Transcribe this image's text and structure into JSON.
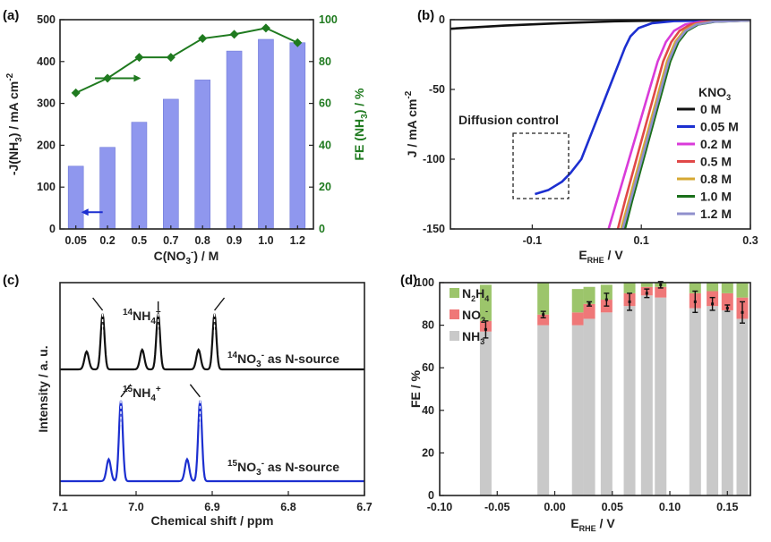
{
  "chart_data": [
    {
      "panel": "(a)",
      "type": "bar",
      "categories": [
        "0.05",
        "0.2",
        "0.5",
        "0.7",
        "0.8",
        "0.9",
        "1.0",
        "1.2"
      ],
      "series": [
        {
          "name": "-J(NH3)",
          "values": [
            150,
            195,
            255,
            310,
            356,
            425,
            453,
            445
          ],
          "color": "#8f97ee",
          "axis": "left"
        },
        {
          "name": "FE (NH3)",
          "values": [
            65,
            72,
            82,
            82,
            91,
            93,
            96,
            89
          ],
          "color": "#1f7a1f",
          "axis": "right"
        }
      ],
      "xlabel": "C(NO",
      "xlabel_sub": "3",
      "xlabel_sup": "-",
      "xlabel_tail": ") / M",
      "ylabel": "-J(NH",
      "ylabel_sub": "3",
      "ylabel_tail": ") / mA cm",
      "ylabel_sup": "-2",
      "y2label": "FE (NH",
      "y2label_sub": "3",
      "y2label_tail": ") / %",
      "ylim": [
        0,
        500
      ],
      "y2lim": [
        0,
        100
      ],
      "yticks": [
        "0",
        "100",
        "200",
        "300",
        "400",
        "500"
      ],
      "y2ticks": [
        "0",
        "20",
        "40",
        "60",
        "80",
        "100"
      ]
    },
    {
      "panel": "(b)",
      "type": "line",
      "xlabel": "E",
      "xlabel_sub": "RHE",
      "xlabel_tail": " / V",
      "ylabel": "J / mA cm",
      "ylabel_sup": "-2",
      "xlim": [
        -0.25,
        0.3
      ],
      "ylim": [
        -150,
        0
      ],
      "xticks": [
        "-0.1",
        "0.1",
        "0.3"
      ],
      "yticks": [
        "0",
        "-50",
        "-100",
        "-150"
      ],
      "legend_title": "KNO",
      "legend_title_sub": "3",
      "annotation": "Diffusion control",
      "series": [
        {
          "name": "0 M",
          "color": "#111111",
          "points": [
            [
              -0.25,
              -6.5
            ],
            [
              -0.15,
              -4.2
            ],
            [
              -0.05,
              -2.5
            ],
            [
              0.05,
              -1.2
            ],
            [
              0.15,
              -0.5
            ],
            [
              0.3,
              -0.1
            ]
          ]
        },
        {
          "name": "0.05 M",
          "color": "#1c2fd0",
          "points": [
            [
              -0.095,
              -125
            ],
            [
              -0.07,
              -122
            ],
            [
              -0.045,
              -116
            ],
            [
              -0.03,
              -110
            ],
            [
              -0.01,
              -100
            ],
            [
              0.0,
              -90
            ],
            [
              0.01,
              -80
            ],
            [
              0.02,
              -70
            ],
            [
              0.03,
              -60
            ],
            [
              0.04,
              -50
            ],
            [
              0.05,
              -40
            ],
            [
              0.06,
              -30
            ],
            [
              0.07,
              -20
            ],
            [
              0.08,
              -12
            ],
            [
              0.095,
              -6
            ],
            [
              0.12,
              -2.5
            ],
            [
              0.16,
              -1
            ],
            [
              0.3,
              -0.2
            ]
          ]
        },
        {
          "name": "0.2 M",
          "color": "#d93bd9",
          "points": [
            [
              0.04,
              -150
            ],
            [
              0.055,
              -130
            ],
            [
              0.07,
              -110
            ],
            [
              0.085,
              -90
            ],
            [
              0.1,
              -70
            ],
            [
              0.115,
              -50
            ],
            [
              0.13,
              -30
            ],
            [
              0.145,
              -16
            ],
            [
              0.16,
              -8
            ],
            [
              0.18,
              -3.5
            ],
            [
              0.21,
              -1.5
            ],
            [
              0.3,
              -0.5
            ]
          ]
        },
        {
          "name": "0.5 M",
          "color": "#e04848",
          "points": [
            [
              0.057,
              -150
            ],
            [
              0.07,
              -130
            ],
            [
              0.084,
              -110
            ],
            [
              0.098,
              -90
            ],
            [
              0.112,
              -70
            ],
            [
              0.126,
              -50
            ],
            [
              0.14,
              -30
            ],
            [
              0.155,
              -16
            ],
            [
              0.17,
              -8
            ],
            [
              0.19,
              -3.5
            ],
            [
              0.22,
              -1.5
            ],
            [
              0.3,
              -0.5
            ]
          ]
        },
        {
          "name": "0.8 M",
          "color": "#d6a833",
          "points": [
            [
              0.063,
              -150
            ],
            [
              0.077,
              -130
            ],
            [
              0.091,
              -110
            ],
            [
              0.105,
              -90
            ],
            [
              0.119,
              -70
            ],
            [
              0.133,
              -50
            ],
            [
              0.147,
              -30
            ],
            [
              0.162,
              -16
            ],
            [
              0.178,
              -8
            ],
            [
              0.198,
              -3.5
            ],
            [
              0.228,
              -1.5
            ],
            [
              0.3,
              -0.5
            ]
          ]
        },
        {
          "name": "1.0 M",
          "color": "#1a6f1a",
          "points": [
            [
              0.07,
              -150
            ],
            [
              0.083,
              -130
            ],
            [
              0.097,
              -110
            ],
            [
              0.111,
              -90
            ],
            [
              0.125,
              -70
            ],
            [
              0.139,
              -50
            ],
            [
              0.153,
              -30
            ],
            [
              0.168,
              -16
            ],
            [
              0.184,
              -8
            ],
            [
              0.204,
              -3.5
            ],
            [
              0.234,
              -1.5
            ],
            [
              0.3,
              -0.5
            ]
          ]
        },
        {
          "name": "1.2 M",
          "color": "#9090cc",
          "points": [
            [
              0.066,
              -150
            ],
            [
              0.08,
              -130
            ],
            [
              0.094,
              -110
            ],
            [
              0.108,
              -90
            ],
            [
              0.122,
              -70
            ],
            [
              0.136,
              -50
            ],
            [
              0.15,
              -30
            ],
            [
              0.165,
              -16
            ],
            [
              0.181,
              -8
            ],
            [
              0.201,
              -3.5
            ],
            [
              0.231,
              -1.5
            ],
            [
              0.3,
              -0.5
            ]
          ]
        }
      ]
    },
    {
      "panel": "(c)",
      "type": "line",
      "xlabel": "Chemical shift / ppm",
      "ylabel": "Intensity / a. u.",
      "xlim": [
        7.1,
        6.7
      ],
      "xticks": [
        "7.1",
        "7.0",
        "6.9",
        "6.8",
        "6.7"
      ],
      "series": [
        {
          "name": "14NO3- as N-source",
          "color": "#111111",
          "baseline": 0.62,
          "peaks": [
            [
              7.065,
              0.2,
              0.004
            ],
            [
              7.044,
              0.62,
              0.0035
            ],
            [
              6.992,
              0.22,
              0.004
            ],
            [
              6.971,
              0.62,
              0.0035
            ],
            [
              6.918,
              0.22,
              0.004
            ],
            [
              6.897,
              0.62,
              0.0035
            ]
          ]
        },
        {
          "name": "15NO3- as N-source",
          "color": "#1c2fd0",
          "baseline": 0.0,
          "peaks": [
            [
              7.036,
              0.25,
              0.004
            ],
            [
              7.02,
              0.92,
              0.0035
            ],
            [
              6.933,
              0.25,
              0.004
            ],
            [
              6.916,
              0.92,
              0.0035
            ]
          ]
        }
      ],
      "annotations": [
        {
          "sup": "14",
          "main": "NH",
          "sub": "4",
          "charge": "+"
        },
        {
          "sup": "15",
          "main": "NH",
          "sub": "4",
          "charge": "+"
        },
        {
          "sup": "14",
          "main": "NO",
          "sub": "3",
          "charge": "-",
          "tail": " as N-source"
        },
        {
          "sup": "15",
          "main": "NO",
          "sub": "3",
          "charge": "-",
          "tail": " as N-source"
        }
      ]
    },
    {
      "panel": "(d)",
      "type": "bar",
      "stacked": true,
      "xlabel": "E",
      "xlabel_sub": "RHE",
      "xlabel_tail": " / V",
      "ylabel": "FE / %",
      "xlim": [
        -0.1,
        0.17
      ],
      "ylim": [
        0,
        100
      ],
      "xticks": [
        "-0.10",
        "-0.05",
        "0.00",
        "0.05",
        "0.10",
        "0.15"
      ],
      "yticks": [
        "0",
        "20",
        "40",
        "60",
        "80",
        "100"
      ],
      "legend": [
        {
          "main": "N",
          "sub": "2",
          "main2": "H",
          "sub2": "4",
          "color": "#9cc56b"
        },
        {
          "main": "NO",
          "sub": "2",
          "sup": "-",
          "color": "#ef7878"
        },
        {
          "main": "NH",
          "sub": "3",
          "color": "#c9c9c9"
        }
      ],
      "x": [
        -0.06,
        -0.01,
        0.02,
        0.03,
        0.045,
        0.065,
        0.08,
        0.092,
        0.122,
        0.137,
        0.15,
        0.163
      ],
      "series": [
        {
          "name": "NH3",
          "values": [
            77,
            80,
            80,
            83,
            86,
            89,
            94,
            93,
            88,
            89,
            87,
            83
          ],
          "color": "#c9c9c9"
        },
        {
          "name": "NO2-",
          "values": [
            5,
            5,
            6,
            7,
            6,
            6,
            4,
            5,
            7,
            7,
            8,
            10
          ],
          "color": "#ef7878"
        },
        {
          "name": "N2H4",
          "values": [
            17,
            15,
            11,
            8,
            7,
            5,
            2,
            2,
            5,
            4,
            5,
            7
          ],
          "color": "#9cc56b"
        }
      ],
      "error_bar_values": [
        [
          78,
          4
        ],
        [
          85,
          1.5
        ],
        [
          0,
          0
        ],
        [
          90,
          1
        ],
        [
          92,
          3
        ],
        [
          91,
          4
        ],
        [
          95,
          2
        ],
        [
          99,
          1.5
        ],
        [
          91,
          5
        ],
        [
          90,
          3
        ],
        [
          88,
          1.5
        ],
        [
          86,
          5
        ]
      ]
    }
  ]
}
